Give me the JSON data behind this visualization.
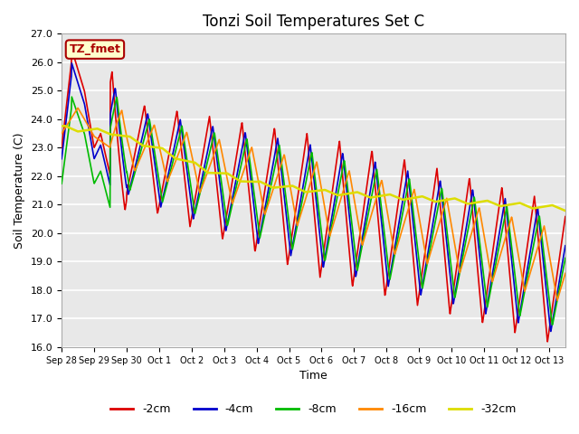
{
  "title": "Tonzi Soil Temperatures Set C",
  "xlabel": "Time",
  "ylabel": "Soil Temperature (C)",
  "ylim": [
    16.0,
    27.0
  ],
  "yticks": [
    16.0,
    17.0,
    18.0,
    19.0,
    20.0,
    21.0,
    22.0,
    23.0,
    24.0,
    25.0,
    26.0,
    27.0
  ],
  "bg_color": "#e8e8e8",
  "fig_bg": "#ffffff",
  "series": {
    "-2cm": {
      "color": "#dd0000",
      "lw": 1.2
    },
    "-4cm": {
      "color": "#0000cc",
      "lw": 1.2
    },
    "-8cm": {
      "color": "#00bb00",
      "lw": 1.2
    },
    "-16cm": {
      "color": "#ff8800",
      "lw": 1.2
    },
    "-32cm": {
      "color": "#dddd00",
      "lw": 1.8
    }
  },
  "xtick_labels": [
    "Sep 28",
    "Sep 29",
    "Sep 30",
    "Oct 1",
    "Oct 2",
    "Oct 3",
    "Oct 4",
    "Oct 5",
    "Oct 6",
    "Oct 7",
    "Oct 8",
    "Oct 9",
    "Oct 10",
    "Oct 11",
    "Oct 12",
    "Oct 13"
  ],
  "annotation_text": "TZ_fmet",
  "annotation_bg": "#ffffcc",
  "annotation_edge": "#aa0000"
}
